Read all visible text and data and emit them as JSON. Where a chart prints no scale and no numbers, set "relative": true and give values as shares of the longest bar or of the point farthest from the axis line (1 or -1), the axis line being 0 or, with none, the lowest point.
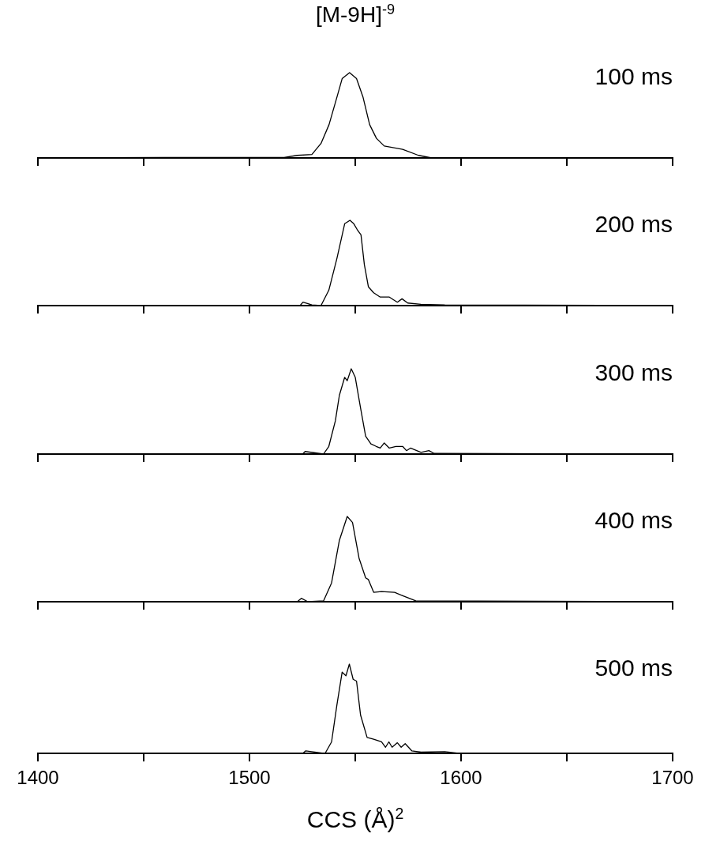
{
  "chart_data": [
    {
      "type": "line",
      "title": "[M-9H]$^{-9}$",
      "relative": true,
      "annotations": [
        "100 ms"
      ],
      "xlim": [
        1400,
        1700
      ],
      "xticks": [
        {
          "value": 1400,
          "label": null
        },
        {
          "value": 1450,
          "label": null
        },
        {
          "value": 1500,
          "label": null
        },
        {
          "value": 1550,
          "label": null
        },
        {
          "value": 1600,
          "label": null
        },
        {
          "value": 1650,
          "label": null
        },
        {
          "value": 1700,
          "label": null
        }
      ],
      "tick_labels": false,
      "x": [
        1400,
        1460,
        1494,
        1516.4,
        1522.6,
        1529.5,
        1533.8,
        1537.6,
        1541.3,
        1543.8,
        1547.3,
        1550.6,
        1553.7,
        1556.8,
        1560,
        1563.7,
        1572.4,
        1579.9,
        1586.1,
        1700
      ],
      "series": [
        {
          "color": "#000000",
          "values": [
            0,
            0.005,
            0.005,
            0.006,
            0.03,
            0.04,
            0.17,
            0.39,
            0.71,
            0.93,
            1,
            0.93,
            0.71,
            0.39,
            0.23,
            0.14,
            0.1,
            0.03,
            0,
            0
          ]
        }
      ]
    },
    {
      "type": "line",
      "relative": true,
      "annotations": [
        "200 ms"
      ],
      "xlim": [
        1400,
        1700
      ],
      "xticks": [
        {
          "value": 1400,
          "label": null
        },
        {
          "value": 1450,
          "label": null
        },
        {
          "value": 1500,
          "label": null
        },
        {
          "value": 1550,
          "label": null
        },
        {
          "value": 1600,
          "label": null
        },
        {
          "value": 1650,
          "label": null
        },
        {
          "value": 1700,
          "label": null
        }
      ],
      "tick_labels": false,
      "x": [
        1400,
        1523.9,
        1525.3,
        1529.5,
        1533.8,
        1537.5,
        1541.3,
        1545,
        1547.5,
        1549.3,
        1551.2,
        1552.7,
        1554.3,
        1556.2,
        1558.7,
        1561.8,
        1566.1,
        1569.9,
        1572.1,
        1574.8,
        1581,
        1592.3,
        1700
      ],
      "series": [
        {
          "color": "#000000",
          "values": [
            0,
            0,
            0.04,
            0.007,
            0,
            0.18,
            0.55,
            0.96,
            1,
            0.96,
            0.88,
            0.83,
            0.48,
            0.22,
            0.15,
            0.1,
            0.1,
            0.04,
            0.08,
            0.03,
            0.015,
            0.007,
            0
          ]
        }
      ]
    },
    {
      "type": "line",
      "relative": true,
      "annotations": [
        "300 ms"
      ],
      "xlim": [
        1400,
        1700
      ],
      "xticks": [
        {
          "value": 1400,
          "label": null
        },
        {
          "value": 1450,
          "label": null
        },
        {
          "value": 1500,
          "label": null
        },
        {
          "value": 1550,
          "label": null
        },
        {
          "value": 1600,
          "label": null
        },
        {
          "value": 1650,
          "label": null
        },
        {
          "value": 1700,
          "label": null
        }
      ],
      "tick_labels": false,
      "x": [
        1400,
        1525.1,
        1526.3,
        1535,
        1537.5,
        1540.6,
        1542.5,
        1545,
        1546.2,
        1548.1,
        1550,
        1552.5,
        1554.9,
        1557.4,
        1559.9,
        1561.8,
        1563.7,
        1566.1,
        1569.2,
        1572.4,
        1574.2,
        1576.1,
        1581.1,
        1584.8,
        1587.3,
        1700
      ],
      "series": [
        {
          "color": "#000000",
          "values": [
            0,
            0,
            0.03,
            0,
            0.09,
            0.39,
            0.69,
            0.9,
            0.86,
            1,
            0.9,
            0.54,
            0.21,
            0.12,
            0.09,
            0.07,
            0.13,
            0.07,
            0.09,
            0.09,
            0.04,
            0.07,
            0.02,
            0.04,
            0.007,
            0
          ]
        }
      ]
    },
    {
      "type": "line",
      "relative": true,
      "annotations": [
        "400 ms"
      ],
      "xlim": [
        1400,
        1700
      ],
      "xticks": [
        {
          "value": 1400,
          "label": null
        },
        {
          "value": 1450,
          "label": null
        },
        {
          "value": 1500,
          "label": null
        },
        {
          "value": 1550,
          "label": null
        },
        {
          "value": 1600,
          "label": null
        },
        {
          "value": 1650,
          "label": null
        },
        {
          "value": 1700,
          "label": null
        }
      ],
      "tick_labels": false,
      "x": [
        1400,
        1522.6,
        1524.5,
        1527.6,
        1535,
        1538.8,
        1542.5,
        1546.2,
        1548.7,
        1551.8,
        1554.9,
        1556.2,
        1558.7,
        1562.4,
        1568.6,
        1572.4,
        1578.6,
        1700
      ],
      "series": [
        {
          "color": "#000000",
          "values": [
            0,
            0,
            0.04,
            0,
            0.01,
            0.22,
            0.72,
            1,
            0.93,
            0.51,
            0.28,
            0.26,
            0.11,
            0.12,
            0.11,
            0.07,
            0.01,
            0
          ]
        }
      ]
    },
    {
      "type": "line",
      "relative": true,
      "annotations": [
        "500 ms"
      ],
      "xlabel": "CCS (Å)$^{2}$",
      "xlim": [
        1400,
        1700
      ],
      "xticks": [
        1400,
        {
          "value": 1450,
          "label": null
        },
        1500,
        {
          "value": 1550,
          "label": null
        },
        1600,
        {
          "value": 1650,
          "label": null
        },
        1700
      ],
      "tick_labels": "x",
      "x": [
        1400,
        1525.1,
        1526.6,
        1535.7,
        1538.8,
        1541.3,
        1543.8,
        1545.6,
        1547.2,
        1549,
        1550.6,
        1552.5,
        1555.6,
        1558.7,
        1562.4,
        1564.3,
        1565.9,
        1567.4,
        1569.9,
        1571.7,
        1573.6,
        1576.7,
        1581.1,
        1592.3,
        1599.7,
        1700
      ],
      "series": [
        {
          "color": "#000000",
          "values": [
            0,
            0,
            0.03,
            0,
            0.13,
            0.54,
            0.91,
            0.87,
            1,
            0.83,
            0.81,
            0.43,
            0.18,
            0.16,
            0.13,
            0.07,
            0.13,
            0.07,
            0.12,
            0.07,
            0.11,
            0.03,
            0.015,
            0.02,
            0,
            0
          ]
        }
      ]
    }
  ]
}
